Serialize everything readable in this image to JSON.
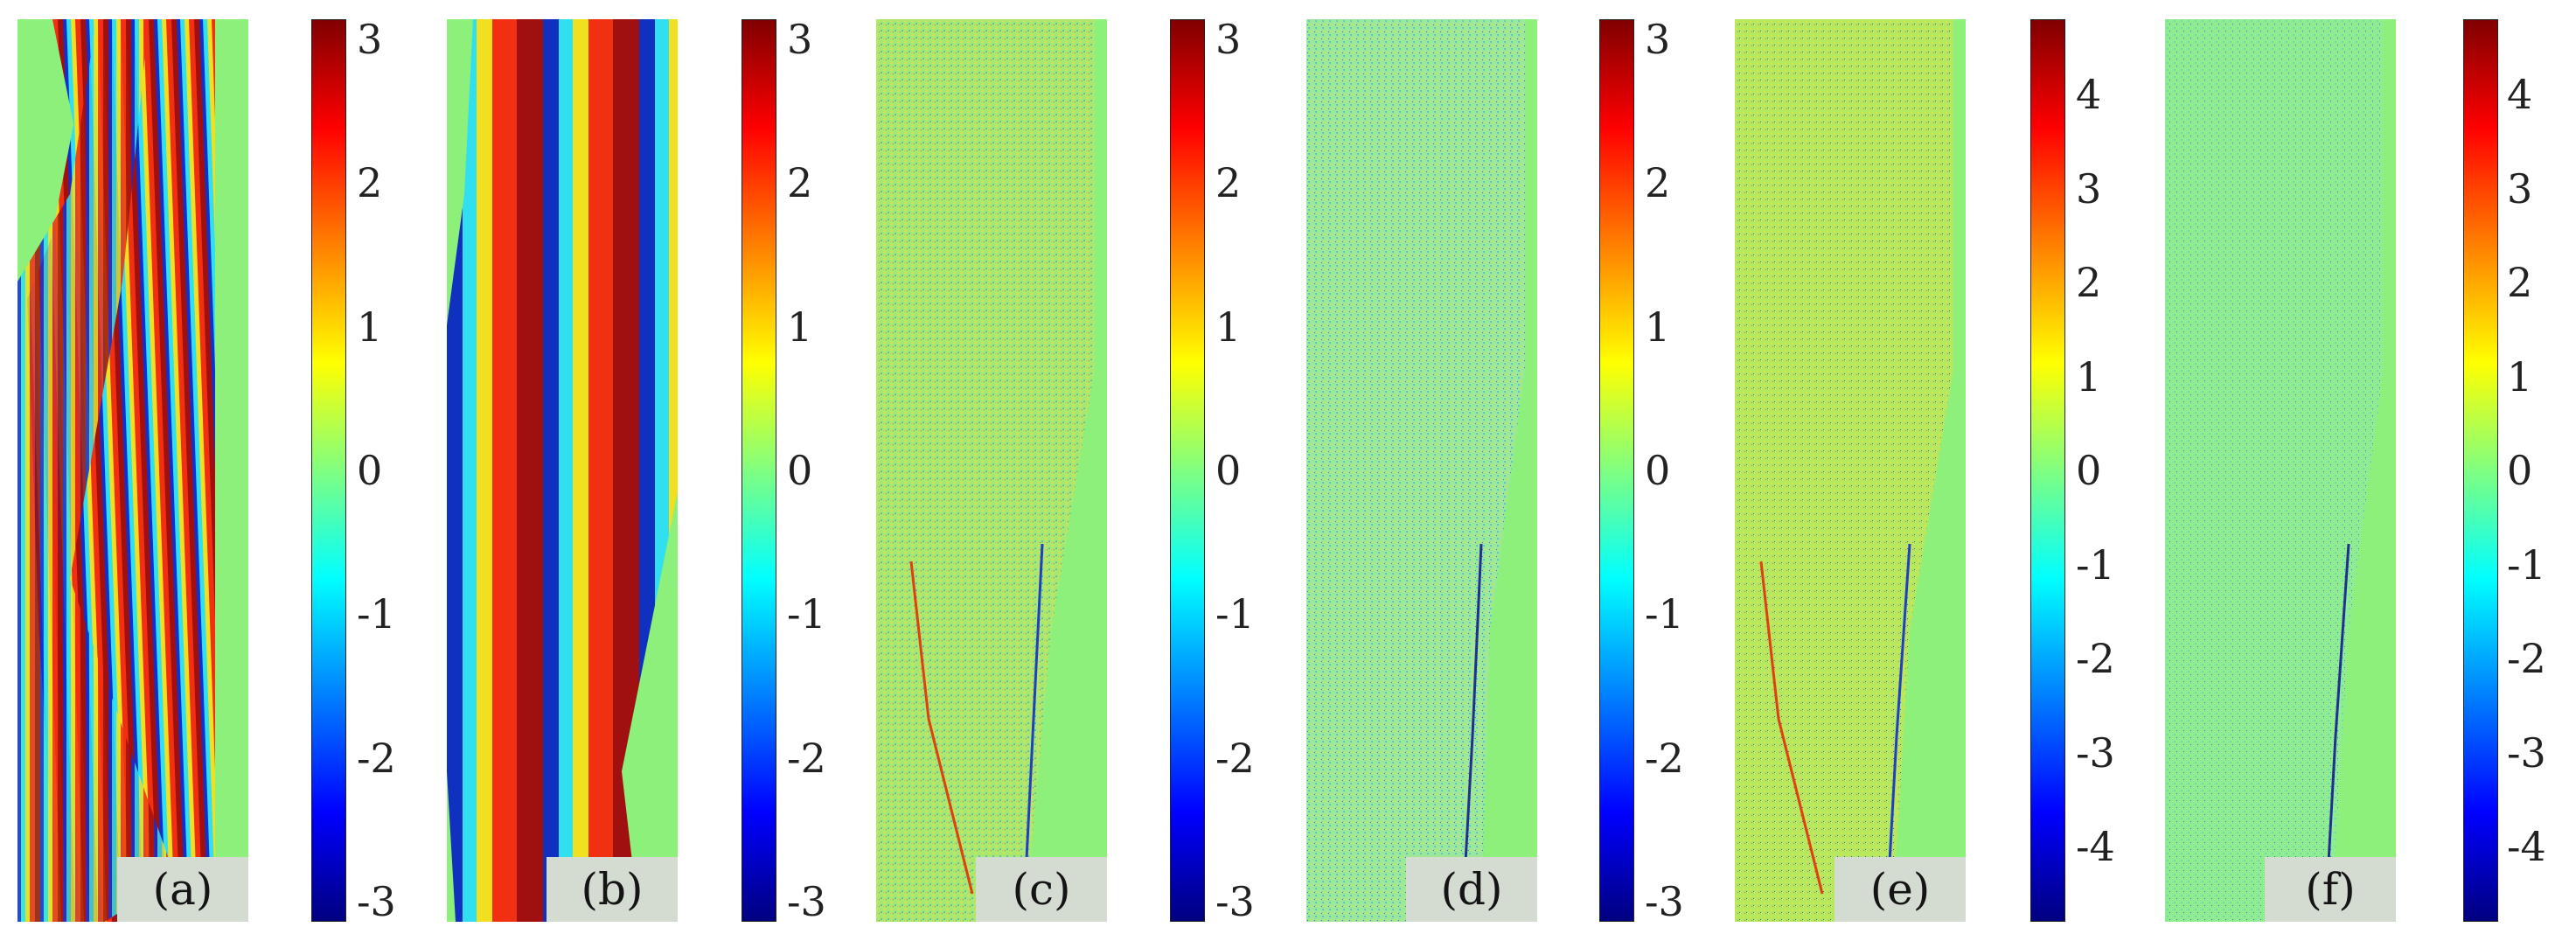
{
  "panels": [
    {
      "label": "(a)",
      "pattern": "dense-fringes",
      "colorbar": {
        "min": -3.14,
        "max": 3.14,
        "ticks": [
          "3",
          "2",
          "1",
          "0",
          "-1",
          "-2",
          "-3"
        ],
        "values": [
          3,
          2,
          1,
          0,
          -1,
          -2,
          -3
        ]
      }
    },
    {
      "label": "(b)",
      "pattern": "wide-fringes",
      "colorbar": {
        "min": -3.14,
        "max": 3.14,
        "ticks": [
          "3",
          "2",
          "1",
          "0",
          "-1",
          "-2",
          "-3"
        ],
        "values": [
          3,
          2,
          1,
          0,
          -1,
          -2,
          -3
        ]
      }
    },
    {
      "label": "(c)",
      "pattern": "residual-noise",
      "colorbar": {
        "min": -3.14,
        "max": 3.14,
        "ticks": [
          "3",
          "2",
          "1",
          "0",
          "-1",
          "-2",
          "-3"
        ],
        "values": [
          3,
          2,
          1,
          0,
          -1,
          -2,
          -3
        ]
      }
    },
    {
      "label": "(d)",
      "pattern": "residual-noise",
      "colorbar": {
        "min": -3.14,
        "max": 3.14,
        "ticks": [
          "3",
          "2",
          "1",
          "0",
          "-1",
          "-2",
          "-3"
        ],
        "values": [
          3,
          2,
          1,
          0,
          -1,
          -2,
          -3
        ]
      }
    },
    {
      "label": "(e)",
      "pattern": "residual-noise",
      "colorbar": {
        "min": -4.8,
        "max": 4.8,
        "ticks": [
          "4",
          "3",
          "2",
          "1",
          "0",
          "-1",
          "-2",
          "-3",
          "-4"
        ],
        "values": [
          4,
          3,
          2,
          1,
          0,
          -1,
          -2,
          -3,
          -4
        ]
      }
    },
    {
      "label": "(f)",
      "pattern": "residual-noise",
      "colorbar": {
        "min": -4.8,
        "max": 4.8,
        "ticks": [
          "4",
          "3",
          "2",
          "1",
          "0",
          "-1",
          "-2",
          "-3",
          "-4"
        ],
        "values": [
          4,
          3,
          2,
          1,
          0,
          -1,
          -2,
          -3,
          -4
        ]
      }
    }
  ],
  "colors": {
    "background_green": "#8cf07a",
    "colormap": "jet"
  }
}
